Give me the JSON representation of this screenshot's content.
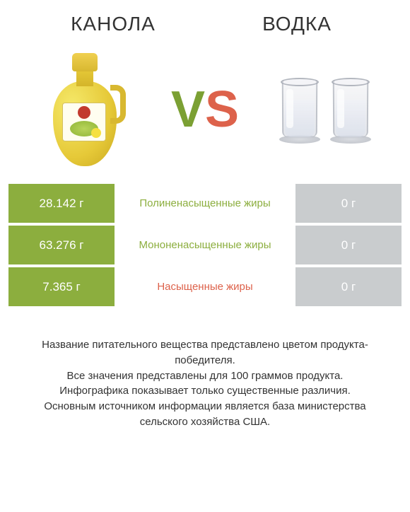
{
  "header": {
    "left_title": "КАНОЛА",
    "right_title": "ВОДКА"
  },
  "vs": {
    "v": "V",
    "s": "S"
  },
  "colors": {
    "green_win": "#8cae3e",
    "green_label": "#8cae3e",
    "red_win": "#dd624b",
    "red_label": "#dd624b",
    "grey_lose": "#c9ccce",
    "text_dark": "#333333",
    "bg": "#ffffff"
  },
  "rows": [
    {
      "left_value": "28.142 г",
      "label": "Полиненасыщенные жиры",
      "right_value": "0 г",
      "left_bg": "#8cae3e",
      "label_color": "#8cae3e",
      "right_bg": "#c9ccce"
    },
    {
      "left_value": "63.276 г",
      "label": "Мононенасыщенные жиры",
      "right_value": "0 г",
      "left_bg": "#8cae3e",
      "label_color": "#8cae3e",
      "right_bg": "#c9ccce"
    },
    {
      "left_value": "7.365 г",
      "label": "Насыщенные жиры",
      "right_value": "0 г",
      "left_bg": "#8cae3e",
      "label_color": "#dd624b",
      "right_bg": "#c9ccce"
    }
  ],
  "footer": {
    "line1": "Название питательного вещества представлено цветом продукта-победителя.",
    "line2": "Все значения представлены для 100 граммов продукта.",
    "line3": "Инфографика показывает только существенные различия.",
    "line4": "Основным источником информации является база министерства сельского хозяйства США."
  }
}
